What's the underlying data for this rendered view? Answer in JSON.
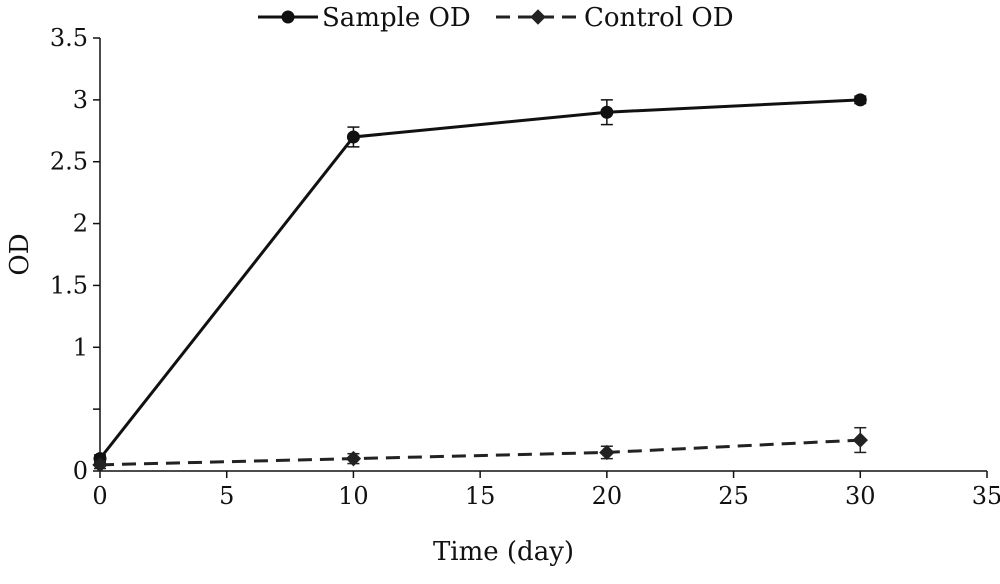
{
  "chart_data": {
    "type": "line",
    "title": "",
    "xlabel": "Time (day)",
    "ylabel": "OD",
    "xlim": [
      0,
      35
    ],
    "ylim": [
      0,
      3.5
    ],
    "xticks": [
      0,
      5,
      10,
      15,
      20,
      25,
      30,
      35
    ],
    "yticks": [
      0,
      0.5,
      1,
      1.5,
      2,
      2.5,
      3,
      3.5
    ],
    "ytick_labels": [
      "0",
      "",
      "1",
      "1.5",
      "2",
      "2.5",
      "3",
      "3.5"
    ],
    "grid": false,
    "legend_position": "top-center",
    "series": [
      {
        "name": "Sample OD",
        "line_style": "solid",
        "marker": "circle",
        "color": "#111111",
        "x": [
          0,
          10,
          20,
          30
        ],
        "y": [
          0.1,
          2.7,
          2.9,
          3.0
        ],
        "error": [
          0.03,
          0.08,
          0.1,
          0.03
        ]
      },
      {
        "name": "Control OD",
        "line_style": "dashed",
        "marker": "diamond",
        "color": "#222222",
        "x": [
          0,
          10,
          20,
          30
        ],
        "y": [
          0.05,
          0.1,
          0.15,
          0.25
        ],
        "error": [
          0.03,
          0.04,
          0.05,
          0.1
        ]
      }
    ]
  }
}
